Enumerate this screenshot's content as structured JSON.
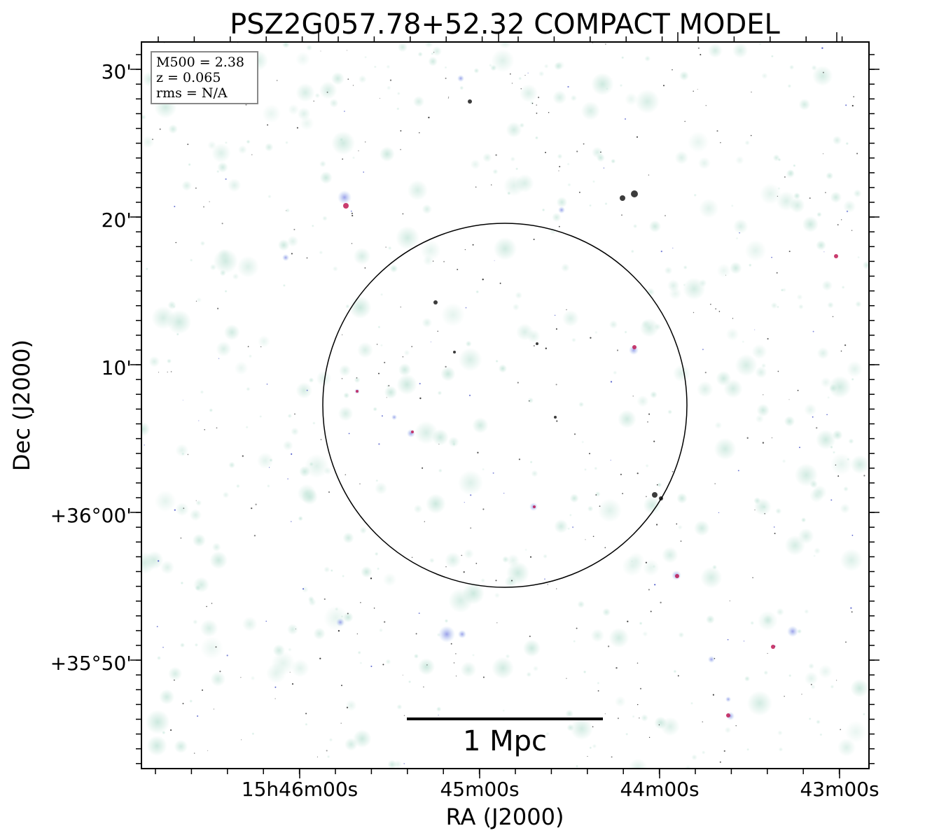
{
  "figure": {
    "title": "PSZ2G057.78+52.32 COMPACT MODEL",
    "xlabel": "RA (J2000)",
    "ylabel": "Dec (J2000)",
    "xticks": [
      "15h46m00s",
      "45m00s",
      "44m00s",
      "43m00s"
    ],
    "yticks": [
      "30'",
      "20'",
      "10'",
      "+36°00'",
      "+35°50'"
    ],
    "info_box": {
      "line1": "M500 = 2.38",
      "line2": "z = 0.065",
      "line3": "rms = N/A"
    },
    "scalebar_label": "1 Mpc"
  },
  "colors": {
    "background": "#ffffff",
    "diffuse": "#cfe9e0",
    "compact": "#7d86e0",
    "bright": "#c01a55",
    "frame": "#000000"
  }
}
